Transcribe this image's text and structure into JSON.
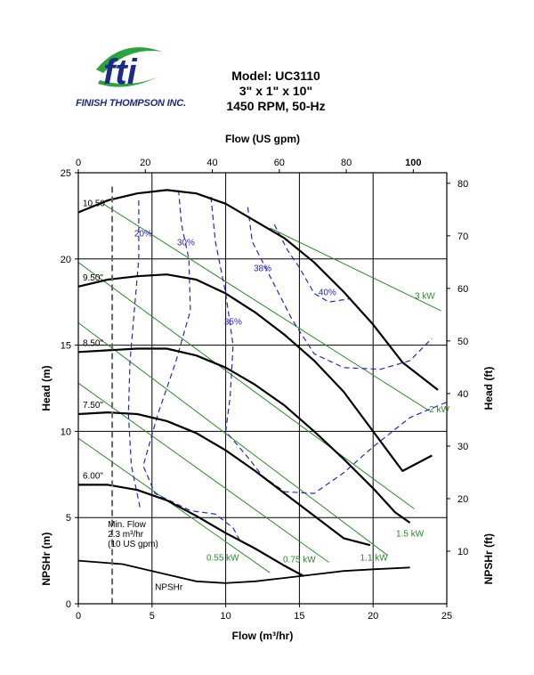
{
  "brand": {
    "logo_text": "fti",
    "company": "FINISH THOMPSON INC.",
    "colors": {
      "logo_blue": "#1b2b86",
      "logo_green": "#2aa33b"
    }
  },
  "header": {
    "model": "Model: UC3110",
    "size": "3\" x 1\" x 10\"",
    "speed": "1450 RPM, 50-Hz"
  },
  "chart_data": {
    "type": "line",
    "x_axis_bottom": {
      "label": "Flow (m³/hr)",
      "range": [
        0,
        25
      ],
      "ticks": [
        0,
        5,
        10,
        15,
        20,
        25
      ]
    },
    "x_axis_top": {
      "label": "Flow  (US gpm)",
      "range": [
        0,
        110
      ],
      "ticks": [
        0,
        20,
        40,
        60,
        80,
        100
      ]
    },
    "y_axis_left": {
      "label": "Head (m)",
      "range": [
        0,
        25
      ],
      "ticks": [
        0,
        5,
        10,
        15,
        20,
        25
      ]
    },
    "y_axis_right": {
      "label": "Head (ft)",
      "range": [
        0,
        82
      ],
      "ticks": [
        10,
        20,
        30,
        40,
        50,
        60,
        70,
        80
      ]
    },
    "npsh_labels": {
      "left": "NPSHr (m)",
      "right": "NPSHr (ft)"
    },
    "grid": true,
    "colors": {
      "impeller": "#000000",
      "efficiency": "#2626c8",
      "power": "#2a8a2a",
      "min_flow": "#666666",
      "grid": "#000000"
    },
    "impeller_curves": [
      {
        "name": "10.50\"",
        "points": [
          [
            0,
            22.7
          ],
          [
            2,
            23.4
          ],
          [
            4,
            23.8
          ],
          [
            6,
            24.0
          ],
          [
            8,
            23.8
          ],
          [
            10,
            23.2
          ],
          [
            12,
            22.2
          ],
          [
            14,
            21.2
          ],
          [
            16,
            19.8
          ],
          [
            18,
            18.1
          ],
          [
            20,
            16.2
          ],
          [
            22,
            14.0
          ],
          [
            24.4,
            12.4
          ]
        ]
      },
      {
        "name": "9.50\"",
        "points": [
          [
            0,
            18.4
          ],
          [
            2,
            18.8
          ],
          [
            4,
            19.0
          ],
          [
            6,
            19.1
          ],
          [
            8,
            18.8
          ],
          [
            10,
            18.0
          ],
          [
            12,
            16.9
          ],
          [
            14,
            15.6
          ],
          [
            16,
            14.1
          ],
          [
            18,
            12.3
          ],
          [
            20,
            10.0
          ],
          [
            22,
            7.7
          ],
          [
            24.0,
            8.6
          ]
        ]
      },
      {
        "name": "8.50\"",
        "points": [
          [
            0,
            14.6
          ],
          [
            2,
            14.7
          ],
          [
            4,
            14.8
          ],
          [
            6,
            14.8
          ],
          [
            8,
            14.4
          ],
          [
            10,
            13.7
          ],
          [
            12,
            12.7
          ],
          [
            14,
            11.5
          ],
          [
            16,
            10.0
          ],
          [
            18,
            8.4
          ],
          [
            20,
            6.7
          ],
          [
            21.5,
            5.3
          ],
          [
            22.5,
            4.7
          ]
        ]
      },
      {
        "name": "7.50\"",
        "points": [
          [
            0,
            11.0
          ],
          [
            2,
            11.1
          ],
          [
            4,
            11.0
          ],
          [
            6,
            10.6
          ],
          [
            8,
            9.9
          ],
          [
            10,
            8.9
          ],
          [
            12,
            7.7
          ],
          [
            14,
            6.4
          ],
          [
            16,
            5.1
          ],
          [
            18,
            3.8
          ],
          [
            19.8,
            3.4
          ]
        ]
      },
      {
        "name": "6.00\"",
        "points": [
          [
            0,
            6.9
          ],
          [
            2,
            6.9
          ],
          [
            4,
            6.6
          ],
          [
            6,
            6.0
          ],
          [
            8,
            5.1
          ],
          [
            10,
            4.1
          ],
          [
            12,
            3.2
          ],
          [
            14,
            2.2
          ],
          [
            15.3,
            1.6
          ]
        ]
      }
    ],
    "efficiency_curves": [
      {
        "name": "20%",
        "points": [
          [
            4.1,
            23.4
          ],
          [
            4.1,
            20.0
          ],
          [
            3.8,
            17.0
          ],
          [
            3.5,
            14.0
          ],
          [
            3.4,
            11.0
          ],
          [
            3.6,
            8.0
          ],
          [
            4.2,
            5.5
          ]
        ]
      },
      {
        "name": "30%",
        "points": [
          [
            6.8,
            24.0
          ],
          [
            7.0,
            22.0
          ],
          [
            7.5,
            20.0
          ],
          [
            7.6,
            17.0
          ],
          [
            6.6,
            14.0
          ],
          [
            5.4,
            11.0
          ],
          [
            4.4,
            8.0
          ],
          [
            5.2,
            6.4
          ],
          [
            7.6,
            5.4
          ],
          [
            9.3,
            5.2
          ],
          [
            10.5,
            4.4
          ],
          [
            11.0,
            3.6
          ]
        ]
      },
      {
        "name": "35%",
        "points": [
          [
            9.0,
            23.6
          ],
          [
            9.3,
            21.0
          ],
          [
            10.0,
            18.0
          ],
          [
            10.5,
            15.0
          ],
          [
            10.3,
            12.0
          ],
          [
            10.0,
            10.0
          ],
          [
            11.5,
            8.5
          ],
          [
            12.5,
            7.4
          ],
          [
            14.0,
            6.5
          ],
          [
            16.0,
            6.4
          ],
          [
            18.0,
            7.6
          ],
          [
            20.0,
            9.1
          ],
          [
            22.5,
            10.8
          ],
          [
            25.0,
            11.7
          ]
        ]
      },
      {
        "name": "38%",
        "points": [
          [
            11.5,
            23.0
          ],
          [
            11.8,
            21.0
          ],
          [
            13.0,
            19.0
          ],
          [
            14.5,
            16.5
          ],
          [
            16.0,
            14.5
          ],
          [
            18.0,
            13.7
          ],
          [
            20.5,
            13.6
          ],
          [
            22.5,
            14.1
          ],
          [
            24.0,
            15.4
          ]
        ]
      },
      {
        "name": "40%",
        "points": [
          [
            13.3,
            22.0
          ],
          [
            14.2,
            20.5
          ],
          [
            15.0,
            19.5
          ],
          [
            16.0,
            18.0
          ],
          [
            17.0,
            17.5
          ],
          [
            18.5,
            17.7
          ]
        ]
      }
    ],
    "power_lines": [
      {
        "name": "0.55 kW",
        "points": [
          [
            0,
            9.6
          ],
          [
            13.0,
            1.8
          ]
        ]
      },
      {
        "name": "0.75 kW",
        "points": [
          [
            0,
            12.8
          ],
          [
            17.0,
            2.4
          ]
        ]
      },
      {
        "name": "1.1 kW",
        "points": [
          [
            0,
            16.3
          ],
          [
            21.0,
            2.8
          ]
        ]
      },
      {
        "name": "1.5 kW",
        "points": [
          [
            0,
            19.8
          ],
          [
            22.8,
            5.5
          ]
        ]
      },
      {
        "name": "2 kW",
        "points": [
          [
            1.5,
            23.3
          ],
          [
            23.8,
            11.2
          ]
        ]
      },
      {
        "name": "3 kW",
        "points": [
          [
            13.0,
            21.8
          ],
          [
            24.6,
            17.0
          ]
        ]
      }
    ],
    "npshr": {
      "name": "NPSHr",
      "points": [
        [
          0,
          2.5
        ],
        [
          3,
          2.3
        ],
        [
          6,
          1.7
        ],
        [
          8,
          1.3
        ],
        [
          10,
          1.2
        ],
        [
          12,
          1.3
        ],
        [
          14,
          1.5
        ],
        [
          16,
          1.7
        ],
        [
          18,
          1.9
        ],
        [
          20,
          2.0
        ],
        [
          22.5,
          2.1
        ]
      ]
    },
    "min_flow": {
      "x": 2.3,
      "label_lines": [
        "Min. Flow",
        "2.3 m³/hr",
        "(10 US gpm)"
      ]
    }
  }
}
